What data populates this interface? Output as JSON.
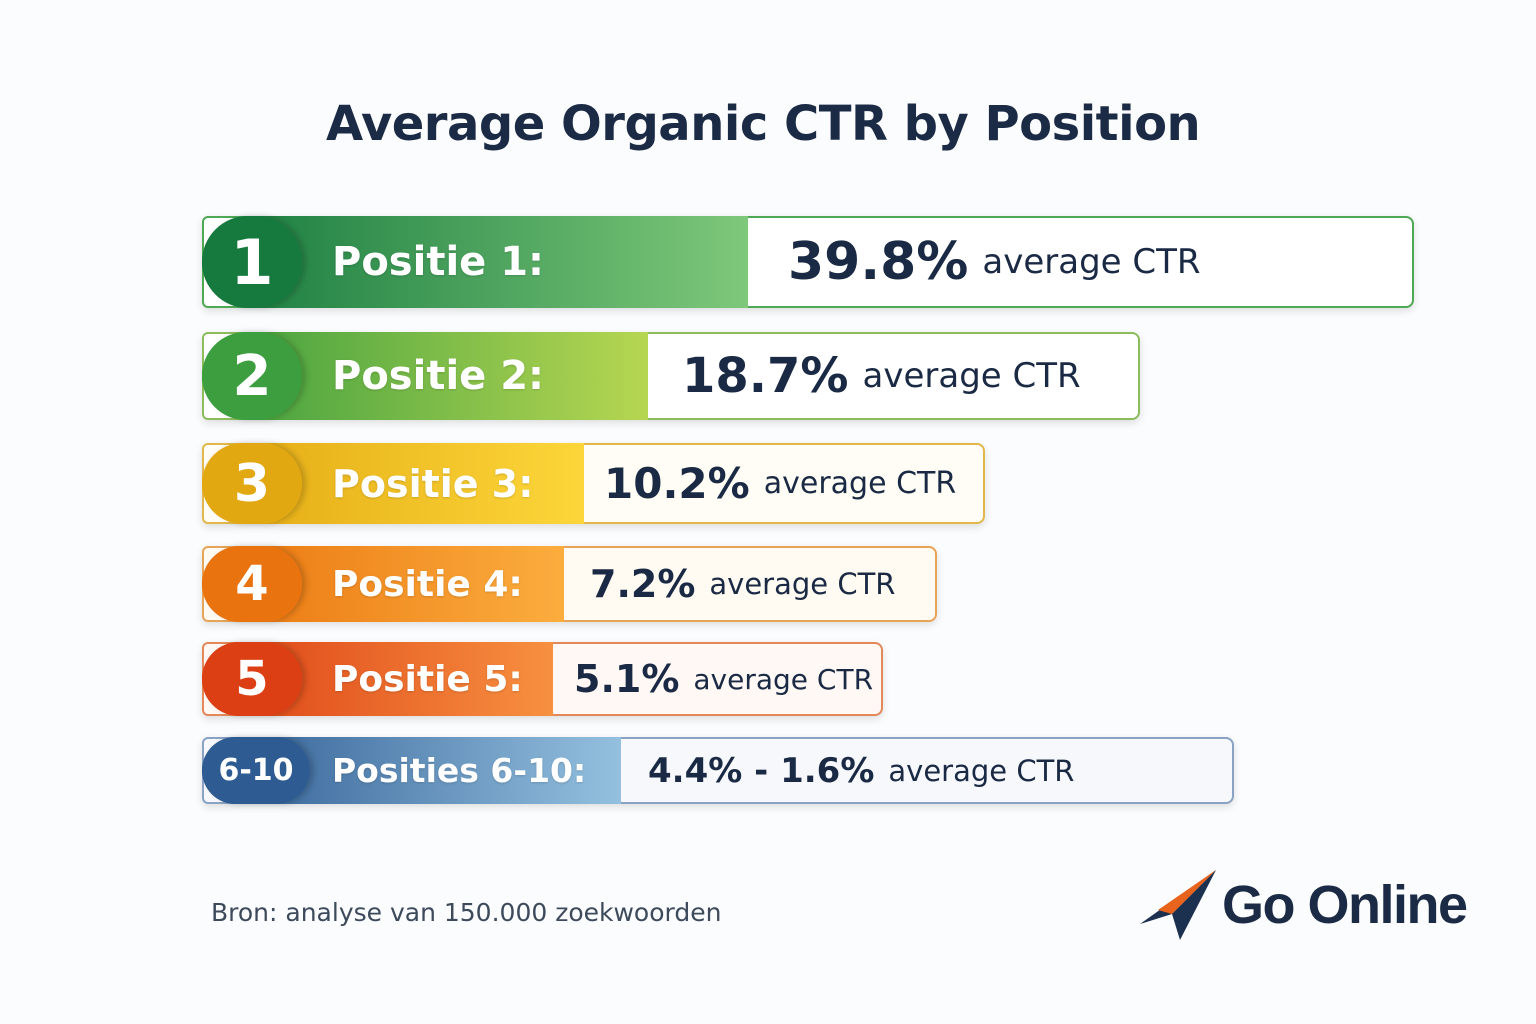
{
  "chart_data": {
    "type": "bar",
    "orientation": "horizontal",
    "title": "Average Organic CTR by Position",
    "categories": [
      "1",
      "2",
      "3",
      "4",
      "5",
      "6-10"
    ],
    "labels": [
      "Positie 1:",
      "Positie 2:",
      "Positie 3:",
      "Positie 4:",
      "Positie 5:",
      "Posities 6-10:"
    ],
    "values": [
      39.8,
      18.7,
      10.2,
      7.2,
      5.1,
      4.4
    ],
    "value_texts": [
      "39.8%",
      "18.7%",
      "10.2%",
      "7.2%",
      "5.1%",
      "4.4% - 1.6%"
    ],
    "value_suffix": "average CTR",
    "range_6_10": [
      4.4,
      1.6
    ],
    "colors": [
      [
        "#167a3e",
        "#7ec87a"
      ],
      [
        "#3d9e3f",
        "#b6d651"
      ],
      [
        "#e2a812",
        "#fcd63a"
      ],
      [
        "#e9730e",
        "#fbad3e"
      ],
      [
        "#dc3f14",
        "#f79040"
      ],
      [
        "#2e5c92",
        "#94c0df"
      ]
    ],
    "frame_borders": [
      "#4ea854",
      "#8cbc5c",
      "#e2b84a",
      "#e8a456",
      "#e4885a",
      "#8aa2c4"
    ],
    "frame_fills": [
      "#ffffff",
      "#ffffff",
      "#fffdf6",
      "#fffaf2",
      "#fff8f4",
      "#f6f8fc"
    ]
  },
  "footer": {
    "source": "Bron: analyse van 150.000 zoekwoorden",
    "brand": "Go Online",
    "brand_icon": "paper-plane-icon"
  }
}
